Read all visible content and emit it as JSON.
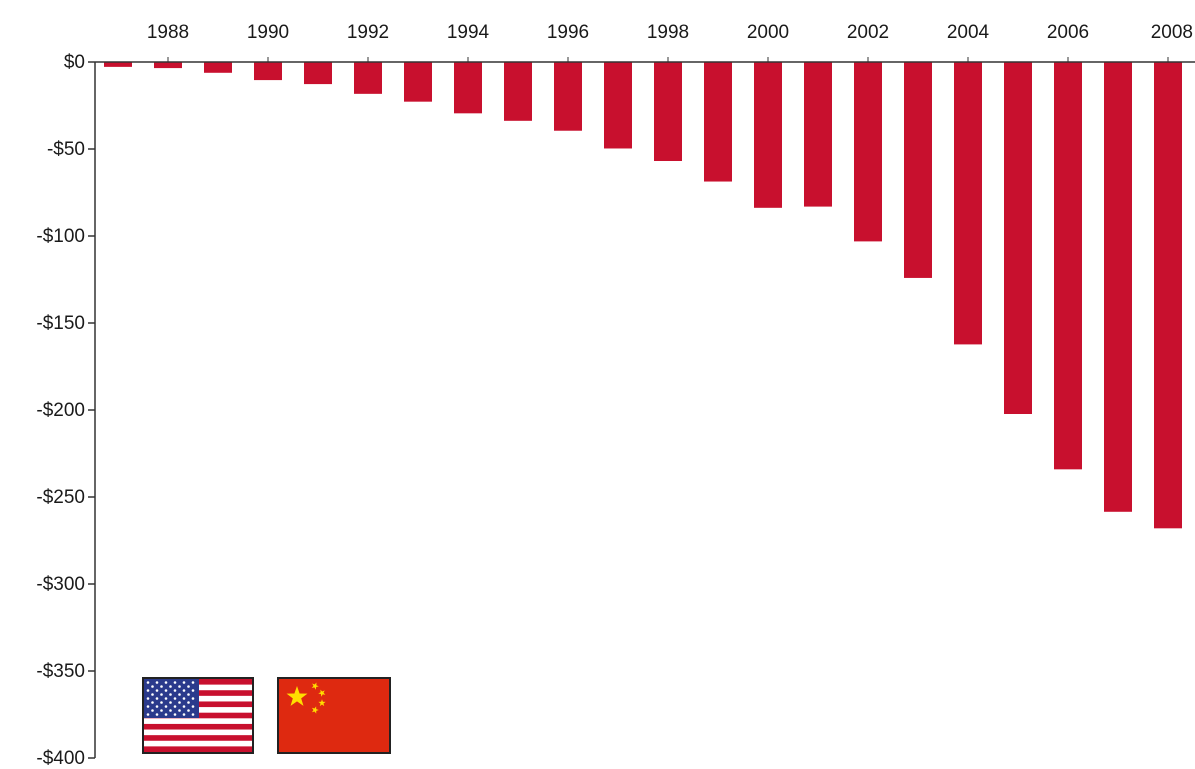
{
  "chart_data": {
    "type": "bar",
    "categories": [
      "1987",
      "1988",
      "1989",
      "1990",
      "1991",
      "1992",
      "1993",
      "1994",
      "1995",
      "1996",
      "1997",
      "1998",
      "1999",
      "2000",
      "2001",
      "2002",
      "2003",
      "2004",
      "2005",
      "2006",
      "2007",
      "2008"
    ],
    "x_tick_labels": [
      "1988",
      "1990",
      "1992",
      "1994",
      "1996",
      "1998",
      "2000",
      "2002",
      "2004",
      "2006",
      "2008"
    ],
    "values": [
      -2.8,
      -3.5,
      -6.2,
      -10.4,
      -12.7,
      -18.3,
      -22.8,
      -29.5,
      -33.8,
      -39.5,
      -49.7,
      -56.9,
      -68.7,
      -83.8,
      -83.1,
      -103.1,
      -124.1,
      -162.3,
      -202.3,
      -234.1,
      -258.5,
      -268.0
    ],
    "y_tick_labels": [
      "$0",
      "-$50",
      "-$100",
      "-$150",
      "-$200",
      "-$250",
      "-$300",
      "-$350",
      "-$400"
    ],
    "y_ticks": [
      0,
      -50,
      -100,
      -150,
      -200,
      -250,
      -300,
      -350,
      -400
    ],
    "ylim": [
      -400,
      0
    ],
    "x_axis_position": "top",
    "grid": false,
    "legend": "none",
    "title": "",
    "xlabel": "",
    "ylabel": "",
    "colors": {
      "bar": "#c8102e",
      "axis": "#333333"
    },
    "flags": [
      {
        "name": "united-states-flag-icon"
      },
      {
        "name": "china-flag-icon"
      }
    ]
  }
}
